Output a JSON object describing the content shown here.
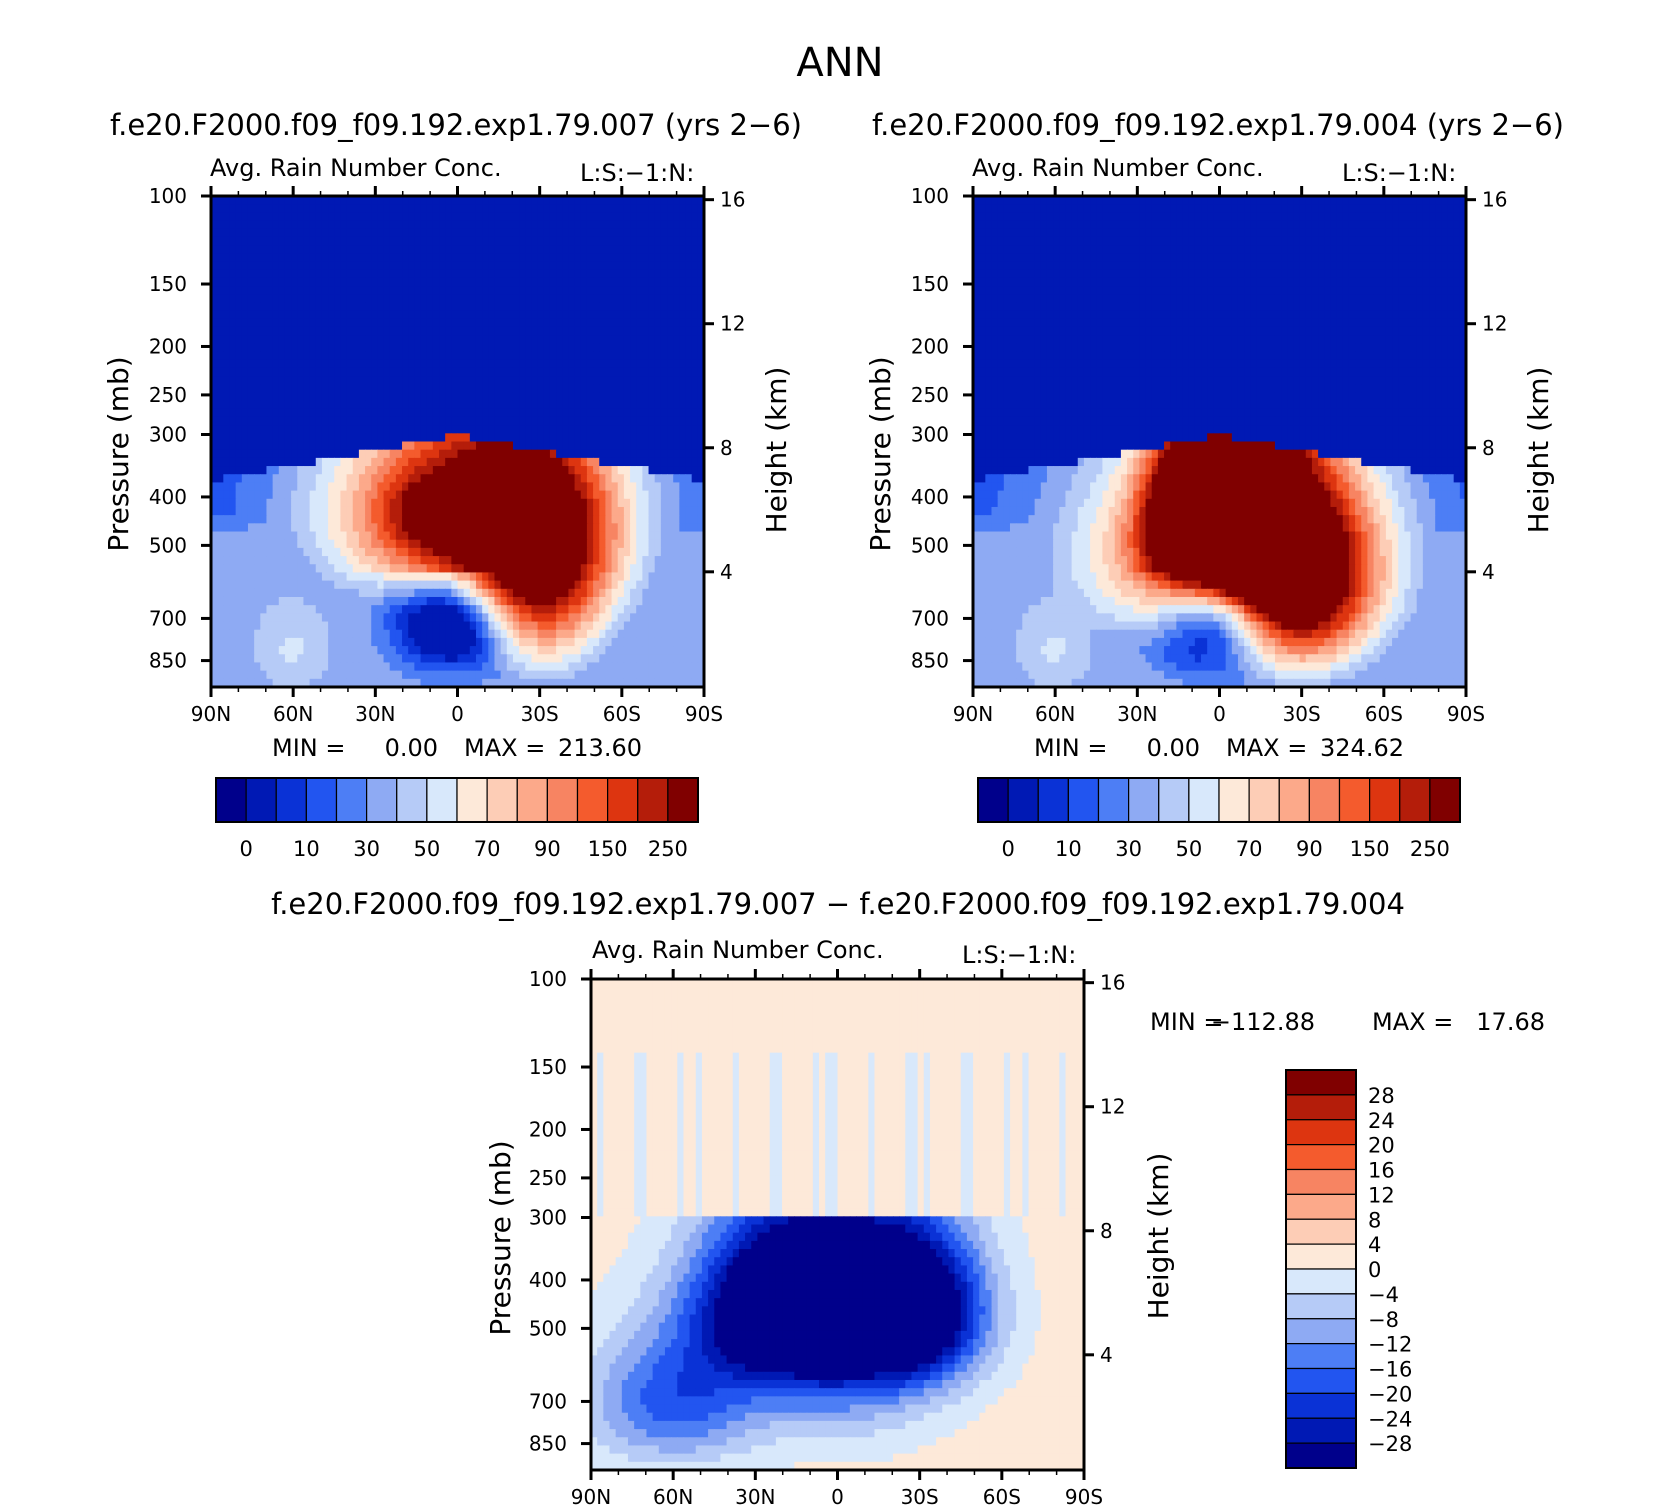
{
  "figure": {
    "title": "ANN",
    "diff_title": "f.e20.F2000.f09_f09.192.exp1.79.007 − f.e20.F2000.f09_f09.192.exp1.79.004"
  },
  "colors": {
    "abs_scale": [
      "#00008b",
      "#0019b4",
      "#0a32d6",
      "#2255f0",
      "#4d7ef5",
      "#8eaaf3",
      "#b6cbf7",
      "#d8e8fb",
      "#fde9d9",
      "#fdcdb6",
      "#fca98a",
      "#f78462",
      "#f45b2d",
      "#dd3510",
      "#b41d0a",
      "#800000"
    ],
    "diff_scale": [
      "#00008b",
      "#0019b4",
      "#0a32d6",
      "#2255f0",
      "#4d7ef5",
      "#8eaaf3",
      "#b6cbf7",
      "#d8e8fb",
      "#fde9d9",
      "#fdcdb6",
      "#fca98a",
      "#f78462",
      "#f45b2d",
      "#dd3510",
      "#b41d0a",
      "#800000"
    ]
  },
  "chart_data": [
    {
      "type": "contour",
      "case_title": "f.e20.F2000.f09_f09.192.exp1.79.007 (yrs 2−6)",
      "subtitle_left": "Avg. Rain Number Conc.",
      "subtitle_right": "L:S:−1:N:",
      "ylabel": "Pressure (mb)",
      "ylabel_right": "Height (km)",
      "x_ticks": [
        "90N",
        "60N",
        "30N",
        "0",
        "30S",
        "60S",
        "90S"
      ],
      "y_ticks": [
        "100",
        "150",
        "200",
        "250",
        "300",
        "400",
        "500",
        "700",
        "850"
      ],
      "y_ticks_values": [
        100,
        150,
        200,
        250,
        300,
        400,
        500,
        700,
        850
      ],
      "ylim": [
        100,
        960
      ],
      "height_ticks": [
        "16",
        "12",
        "8",
        "4"
      ],
      "height_ticks_values": [
        16,
        12,
        8,
        4
      ],
      "min_label": "MIN =",
      "min_value": "0.00",
      "max_label": "MAX =",
      "max_value": "213.60",
      "colorbar_labels": [
        "0",
        "10",
        "30",
        "50",
        "70",
        "90",
        "150",
        "250"
      ],
      "field": {
        "center_lat": -5,
        "core_lat": 12,
        "core_p": 430,
        "peak_level": 13.2,
        "twin": false,
        "lobe_p": 660
      }
    },
    {
      "type": "contour",
      "case_title": "f.e20.F2000.f09_f09.192.exp1.79.004 (yrs 2−6)",
      "subtitle_left": "Avg. Rain Number Conc.",
      "subtitle_right": "L:S:−1:N:",
      "ylabel": "Pressure (mb)",
      "ylabel_right": "Height (km)",
      "x_ticks": [
        "90N",
        "60N",
        "30N",
        "0",
        "30S",
        "60S",
        "90S"
      ],
      "y_ticks": [
        "100",
        "150",
        "200",
        "250",
        "300",
        "400",
        "500",
        "700",
        "850"
      ],
      "y_ticks_values": [
        100,
        150,
        200,
        250,
        300,
        400,
        500,
        700,
        850
      ],
      "ylim": [
        100,
        960
      ],
      "height_ticks": [
        "16",
        "12",
        "8",
        "4"
      ],
      "height_ticks_values": [
        16,
        12,
        8,
        4
      ],
      "min_label": "MIN =",
      "min_value": "0.00",
      "max_label": "MAX =",
      "max_value": "324.62",
      "colorbar_labels": [
        "0",
        "10",
        "30",
        "50",
        "70",
        "90",
        "150",
        "250"
      ],
      "field": {
        "center_lat": -3,
        "core_lat": 12,
        "core_p": 430,
        "peak_level": 14.6,
        "twin": true,
        "lobe_p": 620
      }
    },
    {
      "type": "contour",
      "subtitle_left": "Avg. Rain Number Conc.",
      "subtitle_right": "L:S:−1:N:",
      "ylabel": "Pressure (mb)",
      "ylabel_right": "Height (km)",
      "x_ticks": [
        "90N",
        "60N",
        "30N",
        "0",
        "30S",
        "60S",
        "90S"
      ],
      "y_ticks": [
        "100",
        "150",
        "200",
        "250",
        "300",
        "400",
        "500",
        "700",
        "850"
      ],
      "y_ticks_values": [
        100,
        150,
        200,
        250,
        300,
        400,
        500,
        700,
        850
      ],
      "ylim": [
        100,
        960
      ],
      "height_ticks": [
        "16",
        "12",
        "8",
        "4"
      ],
      "height_ticks_values": [
        16,
        12,
        8,
        4
      ],
      "min_label": "MIN =",
      "min_value": "−112.88",
      "max_label": "MAX =",
      "max_value": "17.68",
      "colorbar_labels": [
        "28",
        "24",
        "20",
        "16",
        "12",
        "8",
        "4",
        "0",
        "−4",
        "−8",
        "−12",
        "−16",
        "−20",
        "−24",
        "−28"
      ],
      "colorbar_levels": [
        28,
        24,
        20,
        16,
        12,
        8,
        4,
        0,
        -4,
        -8,
        -12,
        -16,
        -20,
        -24,
        -28
      ]
    }
  ]
}
